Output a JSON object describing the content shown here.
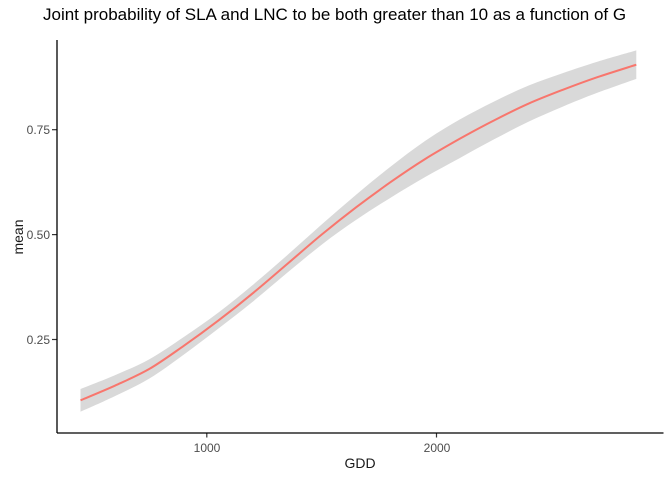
{
  "chart_data": {
    "type": "line",
    "title": "Joint probability of SLA and LNC to be both greater than 10 as a function of G",
    "xlabel": "GDD",
    "ylabel": "mean",
    "x_tick_values": [
      1000,
      2000
    ],
    "x_tick_labels": [
      "1000",
      "2000"
    ],
    "y_tick_values": [
      0.25,
      0.5,
      0.75
    ],
    "y_tick_labels": [
      "0.25",
      "0.50",
      "0.75"
    ],
    "xlim": [
      350,
      2990
    ],
    "ylim": [
      0.03,
      0.96
    ],
    "grid": "off",
    "legend": "none",
    "line_color": "#F8766D",
    "ribbon_color": "#D9D9D9",
    "axis_line_color": "#000000",
    "tick_label_color": "#4d4d4d",
    "series": [
      {
        "name": "mean",
        "x": [
          450,
          600,
          750,
          900,
          1050,
          1200,
          1350,
          1500,
          1650,
          1800,
          1950,
          2100,
          2250,
          2400,
          2550,
          2700,
          2870
        ],
        "y": [
          0.105,
          0.14,
          0.18,
          0.235,
          0.295,
          0.36,
          0.43,
          0.5,
          0.565,
          0.625,
          0.68,
          0.728,
          0.772,
          0.812,
          0.845,
          0.875,
          0.905
        ]
      }
    ],
    "ribbon": {
      "name": "confidence-interval",
      "x": [
        450,
        600,
        750,
        900,
        1050,
        1200,
        1350,
        1500,
        1650,
        1800,
        1950,
        2100,
        2250,
        2400,
        2550,
        2700,
        2870
      ],
      "lower": [
        0.078,
        0.115,
        0.157,
        0.214,
        0.276,
        0.34,
        0.409,
        0.476,
        0.535,
        0.588,
        0.637,
        0.682,
        0.727,
        0.769,
        0.805,
        0.838,
        0.871
      ],
      "upper": [
        0.132,
        0.165,
        0.203,
        0.256,
        0.314,
        0.38,
        0.451,
        0.524,
        0.595,
        0.662,
        0.723,
        0.774,
        0.817,
        0.855,
        0.885,
        0.912,
        0.939
      ]
    }
  }
}
